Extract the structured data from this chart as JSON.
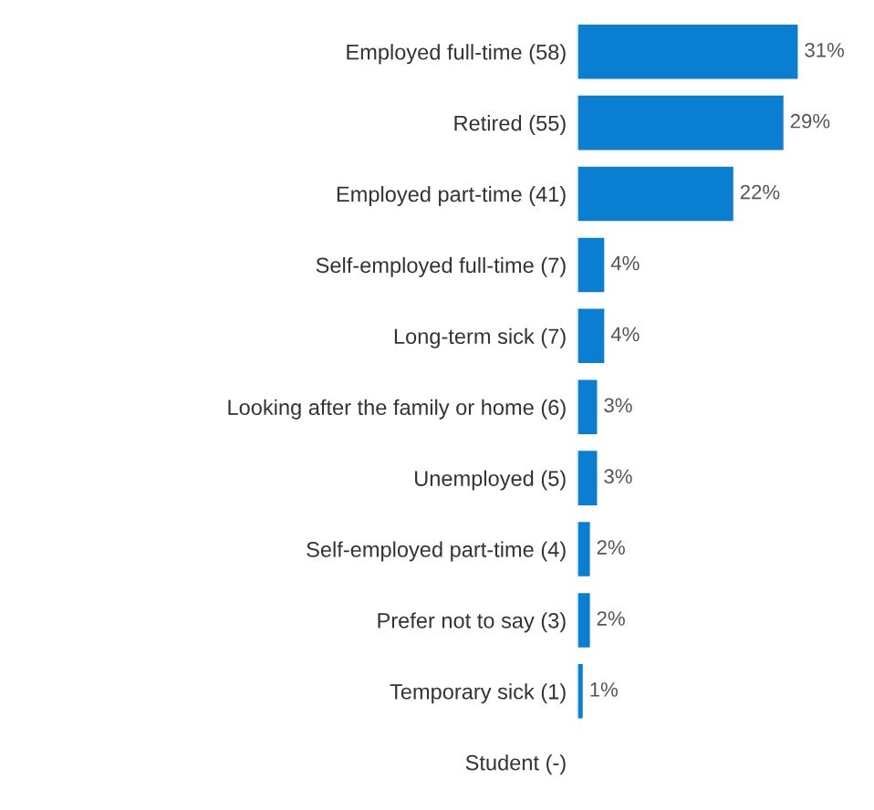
{
  "chart_data": {
    "type": "bar",
    "orientation": "horizontal",
    "color": "#0a7fd1",
    "categories": [
      "Employed full-time (58)",
      "Retired (55)",
      "Employed part-time (41)",
      "Self-employed full-time (7)",
      "Long-term sick (7)",
      "Looking after the family or home (6)",
      "Unemployed (5)",
      "Self-employed part-time (4)",
      "Prefer not to say (3)",
      "Temporary sick (1)",
      "Student (-)"
    ],
    "values": [
      31,
      29,
      22,
      4,
      4,
      3,
      3,
      2,
      2,
      1,
      null
    ],
    "value_labels": [
      "31%",
      "29%",
      "22%",
      "4%",
      "4%",
      "3%",
      "3%",
      "2%",
      "2%",
      "1%",
      null
    ]
  }
}
